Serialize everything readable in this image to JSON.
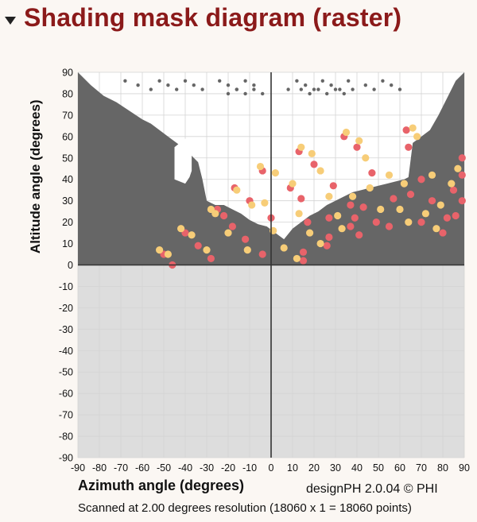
{
  "header": {
    "title": "Shading mask diagram (raster)"
  },
  "footer": {
    "credit": "designPH 2.0.04 © PHI",
    "scan_note": "Scanned at 2.00 degrees resolution (18060 x 1 = 18060 points)"
  },
  "colors": {
    "title": "#8b1a1a",
    "obstruction": "#666666",
    "below_horizon": "#dddddd",
    "sky": "#ffffff",
    "sun_red": "#e8636a",
    "sun_yellow": "#f7cd78"
  },
  "chart_data": {
    "type": "scatter",
    "title": "",
    "xlabel": "Azimuth angle (degrees)",
    "ylabel": "Altitude angle (degrees)",
    "xlim": [
      -90,
      90
    ],
    "ylim": [
      -90,
      90
    ],
    "xticks": [
      -90,
      -80,
      -70,
      -60,
      -50,
      -40,
      -30,
      -20,
      -10,
      0,
      10,
      20,
      30,
      40,
      50,
      60,
      70,
      80,
      90
    ],
    "yticks": [
      90,
      80,
      70,
      60,
      50,
      40,
      30,
      20,
      10,
      0,
      -10,
      -20,
      -30,
      -40,
      -50,
      -60,
      -70,
      -80,
      -90
    ],
    "grid": true,
    "obstruction_profile": {
      "description": "skyline altitude of obstruction vs azimuth",
      "azimuth": [
        -90,
        -84,
        -78,
        -72,
        -66,
        -60,
        -56,
        -52,
        -48,
        -44,
        -40,
        -38,
        -36,
        -34,
        -32,
        -30,
        -28,
        -26,
        -22,
        -18,
        -14,
        -10,
        -6,
        -2,
        2,
        6,
        10,
        14,
        18,
        22,
        26,
        30,
        34,
        38,
        42,
        46,
        50,
        54,
        58,
        62,
        64,
        66,
        70,
        74,
        78,
        82,
        86,
        90
      ],
      "altitude": [
        90,
        84,
        79,
        76,
        72,
        68,
        66,
        63,
        60,
        57,
        54,
        52,
        50,
        48,
        40,
        30,
        29,
        28,
        28,
        26,
        24,
        21,
        19,
        18,
        15,
        12,
        17,
        20,
        23,
        25,
        28,
        30,
        32,
        34,
        35,
        36,
        37,
        38,
        39,
        40,
        41,
        57,
        60,
        63,
        70,
        78,
        86,
        90
      ]
    },
    "obstruction_window": {
      "description": "gap in obstruction",
      "azimuth": [
        -45,
        -40,
        -38,
        -37,
        -37,
        -40,
        -45
      ],
      "altitude": [
        40,
        38,
        41,
        44,
        57,
        59,
        55
      ]
    },
    "series": [
      {
        "color": "#e8636a",
        "points": [
          [
            -50,
            5
          ],
          [
            -46,
            0
          ],
          [
            -40,
            15
          ],
          [
            -34,
            9
          ],
          [
            -28,
            3
          ],
          [
            -25,
            26
          ],
          [
            -22,
            23
          ],
          [
            -18,
            18
          ],
          [
            -17,
            36
          ],
          [
            -12,
            12
          ],
          [
            -10,
            30
          ],
          [
            -4,
            44
          ],
          [
            -4,
            5
          ],
          [
            0,
            22
          ],
          [
            9,
            36
          ],
          [
            13,
            53
          ],
          [
            14,
            31
          ],
          [
            15,
            6
          ],
          [
            15,
            2
          ],
          [
            17,
            20
          ],
          [
            20,
            47
          ],
          [
            26,
            9
          ],
          [
            27,
            22
          ],
          [
            27,
            13
          ],
          [
            29,
            37
          ],
          [
            34,
            60
          ],
          [
            37,
            18
          ],
          [
            37,
            28
          ],
          [
            39,
            22
          ],
          [
            40,
            55
          ],
          [
            41,
            14
          ],
          [
            43,
            27
          ],
          [
            47,
            43
          ],
          [
            49,
            20
          ],
          [
            55,
            18
          ],
          [
            57,
            31
          ],
          [
            63,
            63
          ],
          [
            64,
            55
          ],
          [
            65,
            33
          ],
          [
            70,
            20
          ],
          [
            70,
            40
          ],
          [
            75,
            30
          ],
          [
            80,
            15
          ],
          [
            82,
            22
          ],
          [
            85,
            35
          ],
          [
            89,
            50
          ],
          [
            89,
            42
          ],
          [
            89,
            30
          ],
          [
            86,
            23
          ]
        ]
      },
      {
        "color": "#f7cd78",
        "points": [
          [
            -52,
            7
          ],
          [
            -48,
            5
          ],
          [
            -42,
            17
          ],
          [
            -37,
            14
          ],
          [
            -30,
            7
          ],
          [
            -28,
            26
          ],
          [
            -26,
            24
          ],
          [
            -20,
            15
          ],
          [
            -16,
            35
          ],
          [
            -11,
            7
          ],
          [
            -9,
            28
          ],
          [
            -5,
            46
          ],
          [
            -3,
            29
          ],
          [
            1,
            16
          ],
          [
            2,
            43
          ],
          [
            6,
            8
          ],
          [
            10,
            38
          ],
          [
            12,
            3
          ],
          [
            13,
            24
          ],
          [
            14,
            55
          ],
          [
            18,
            15
          ],
          [
            19,
            52
          ],
          [
            23,
            10
          ],
          [
            23,
            44
          ],
          [
            27,
            32
          ],
          [
            31,
            23
          ],
          [
            33,
            17
          ],
          [
            35,
            62
          ],
          [
            38,
            32
          ],
          [
            41,
            58
          ],
          [
            44,
            50
          ],
          [
            46,
            36
          ],
          [
            51,
            26
          ],
          [
            55,
            42
          ],
          [
            60,
            26
          ],
          [
            62,
            38
          ],
          [
            64,
            20
          ],
          [
            66,
            64
          ],
          [
            68,
            60
          ],
          [
            72,
            24
          ],
          [
            75,
            42
          ],
          [
            77,
            17
          ],
          [
            79,
            28
          ],
          [
            84,
            38
          ],
          [
            87,
            45
          ]
        ]
      }
    ]
  }
}
